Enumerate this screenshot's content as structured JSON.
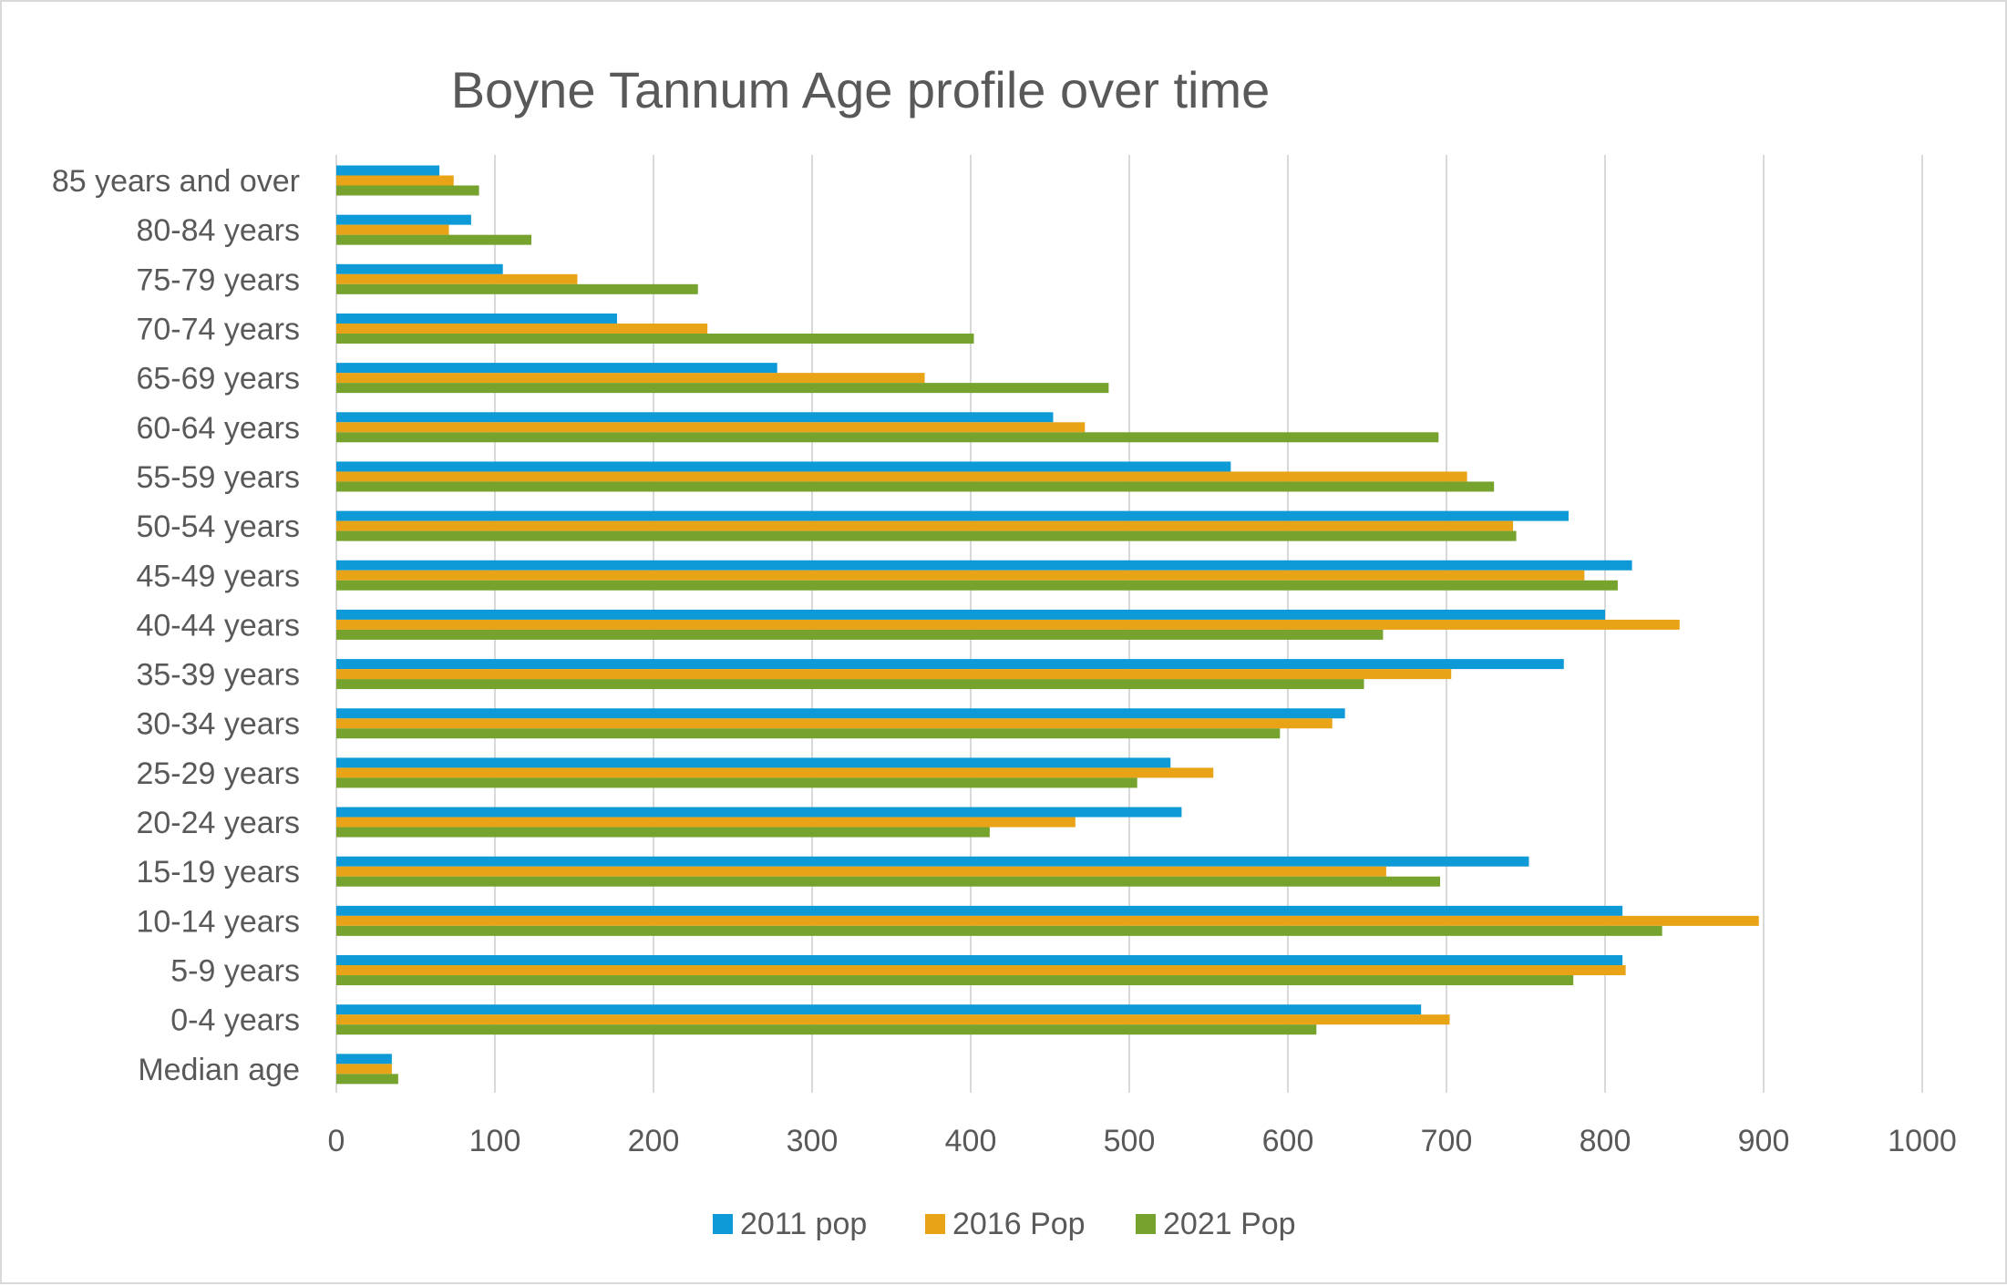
{
  "chart_data": {
    "type": "bar",
    "orientation": "horizontal",
    "title": "Boyne Tannum Age profile over time",
    "xlabel": "",
    "ylabel": "",
    "xlim": [
      0,
      1000
    ],
    "x_ticks": [
      0,
      100,
      200,
      300,
      400,
      500,
      600,
      700,
      800,
      900,
      1000
    ],
    "grid": true,
    "legend_position": "bottom",
    "categories": [
      "85 years and over",
      "80-84 years",
      "75-79 years",
      "70-74 years",
      "65-69 years",
      "60-64 years",
      "55-59 years",
      "50-54 years",
      "45-49 years",
      "40-44 years",
      "35-39 years",
      "30-34 years",
      "25-29 years",
      "20-24 years",
      "15-19 years",
      "10-14 years",
      "5-9 years",
      "0-4 years",
      "Median age"
    ],
    "series": [
      {
        "name": "2011 pop",
        "color": "#0e9ad7",
        "values": [
          65,
          85,
          105,
          177,
          278,
          452,
          564,
          777,
          817,
          800,
          774,
          636,
          526,
          533,
          752,
          811,
          811,
          684,
          35
        ]
      },
      {
        "name": "2016 Pop",
        "color": "#e8a317",
        "values": [
          74,
          71,
          152,
          234,
          371,
          472,
          713,
          742,
          787,
          847,
          703,
          628,
          553,
          466,
          662,
          897,
          813,
          702,
          35
        ]
      },
      {
        "name": "2021 Pop",
        "color": "#76a22e",
        "values": [
          90,
          123,
          228,
          402,
          487,
          695,
          730,
          744,
          808,
          660,
          648,
          595,
          505,
          412,
          696,
          836,
          780,
          618,
          39
        ]
      }
    ]
  }
}
